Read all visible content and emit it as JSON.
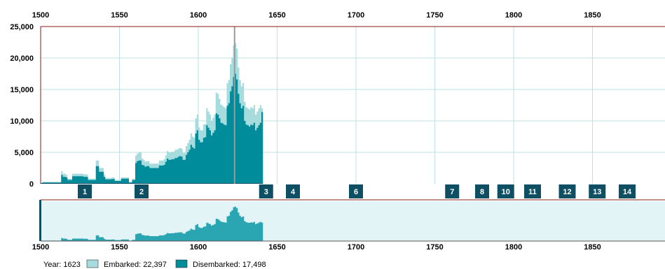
{
  "chart_data": {
    "type": "area",
    "x_ticks": [
      1500,
      1550,
      1600,
      1650,
      1700,
      1750,
      1800,
      1850
    ],
    "y_ticks": [
      0,
      5000,
      10000,
      15000,
      20000,
      25000
    ],
    "y_tick_labels": [
      "0",
      "5,000",
      "10,000",
      "15,000",
      "20,000",
      "25,000"
    ],
    "x_tick_labels": [
      "1500",
      "1550",
      "1600",
      "1650",
      "1700",
      "1750",
      "1800",
      "1850"
    ],
    "xlim": [
      1500,
      1895
    ],
    "ylim": [
      0,
      25000
    ],
    "grid": true,
    "selected_year": 1623,
    "series": [
      {
        "name": "Embarked",
        "color": "#a6dcde",
        "x": [
          1501,
          1513,
          1514,
          1516,
          1517,
          1520,
          1525,
          1527,
          1530,
          1535,
          1536,
          1537,
          1540,
          1541,
          1542,
          1545,
          1546,
          1547,
          1550,
          1551,
          1555,
          1556,
          1558,
          1560,
          1561,
          1562,
          1564,
          1565,
          1566,
          1567,
          1569,
          1571,
          1575,
          1578,
          1579,
          1580,
          1581,
          1583,
          1585,
          1587,
          1588,
          1589,
          1590,
          1592,
          1593,
          1594,
          1595,
          1596,
          1597,
          1598,
          1599,
          1600,
          1601,
          1603,
          1604,
          1605,
          1606,
          1607,
          1608,
          1609,
          1610,
          1611,
          1612,
          1613,
          1614,
          1615,
          1616,
          1617,
          1618,
          1619,
          1620,
          1621,
          1622,
          1623,
          1624,
          1625,
          1626,
          1627,
          1628,
          1629,
          1630,
          1631,
          1632,
          1633,
          1634,
          1635,
          1636,
          1637,
          1638,
          1639,
          1640
        ],
        "values": [
          300,
          2000,
          1600,
          1400,
          800,
          1600,
          1600,
          1500,
          800,
          3700,
          3700,
          2500,
          1500,
          900,
          900,
          1000,
          1000,
          600,
          600,
          1000,
          1000,
          300,
          800,
          4500,
          4800,
          5000,
          4000,
          3800,
          3500,
          3600,
          3200,
          3200,
          3700,
          3900,
          4500,
          5200,
          5000,
          5100,
          5400,
          5600,
          5700,
          5600,
          4900,
          6000,
          6500,
          7000,
          8000,
          7500,
          7300,
          10400,
          11000,
          9000,
          8500,
          9400,
          9500,
          12000,
          11500,
          11000,
          10000,
          10500,
          11000,
          14500,
          14300,
          13500,
          12600,
          12400,
          12200,
          12000,
          16000,
          16500,
          19000,
          20000,
          22000,
          22397,
          21500,
          18500,
          16500,
          15500,
          16000,
          13000,
          12200,
          12000,
          11800,
          12200,
          12000,
          12500,
          11000,
          11500,
          12000,
          12500,
          12000
        ]
      },
      {
        "name": "Disembarked",
        "color": "#008c9b",
        "x": [
          1501,
          1513,
          1514,
          1516,
          1517,
          1520,
          1525,
          1527,
          1530,
          1535,
          1536,
          1537,
          1540,
          1541,
          1542,
          1545,
          1546,
          1547,
          1550,
          1551,
          1555,
          1556,
          1558,
          1560,
          1561,
          1562,
          1564,
          1565,
          1566,
          1567,
          1569,
          1571,
          1575,
          1578,
          1579,
          1580,
          1581,
          1583,
          1585,
          1587,
          1588,
          1589,
          1590,
          1592,
          1593,
          1594,
          1595,
          1596,
          1597,
          1598,
          1599,
          1600,
          1601,
          1603,
          1604,
          1605,
          1606,
          1607,
          1608,
          1609,
          1610,
          1611,
          1612,
          1613,
          1614,
          1615,
          1616,
          1617,
          1618,
          1619,
          1620,
          1621,
          1622,
          1623,
          1624,
          1625,
          1626,
          1627,
          1628,
          1629,
          1630,
          1631,
          1632,
          1633,
          1634,
          1635,
          1636,
          1637,
          1638,
          1639,
          1640
        ],
        "values": [
          200,
          1400,
          1100,
          1000,
          600,
          1200,
          1200,
          1100,
          600,
          2800,
          2800,
          1900,
          1100,
          700,
          700,
          750,
          750,
          450,
          450,
          800,
          800,
          200,
          600,
          3300,
          3600,
          3700,
          3000,
          2900,
          2700,
          2800,
          2500,
          2500,
          2900,
          3000,
          3500,
          4000,
          3800,
          3900,
          4100,
          4300,
          4400,
          4300,
          3800,
          4600,
          5000,
          5400,
          6200,
          5800,
          5600,
          8000,
          8500,
          7000,
          6600,
          7300,
          7400,
          9300,
          8900,
          8500,
          7700,
          8100,
          8500,
          11200,
          11000,
          10400,
          9700,
          9600,
          9400,
          9300,
          12400,
          12800,
          14700,
          15500,
          17000,
          17498,
          16600,
          14300,
          12800,
          12000,
          12400,
          10000,
          9400,
          9300,
          9100,
          9400,
          9300,
          9700,
          8500,
          8900,
          9300,
          9700,
          11400
        ]
      }
    ]
  },
  "markers": [
    {
      "label": "1",
      "year": 1528
    },
    {
      "label": "2",
      "year": 1564
    },
    {
      "label": "3",
      "year": 1643
    },
    {
      "label": "4",
      "year": 1660
    },
    {
      "label": "6",
      "year": 1700
    },
    {
      "label": "7",
      "year": 1761
    },
    {
      "label": "8",
      "year": 1780
    },
    {
      "label": "10",
      "year": 1795
    },
    {
      "label": "11",
      "year": 1812
    },
    {
      "label": "12",
      "year": 1834
    },
    {
      "label": "13",
      "year": 1853
    },
    {
      "label": "14",
      "year": 1872
    }
  ],
  "overview": {
    "x_tick_labels": [
      "1500",
      "1550",
      "1600",
      "1650",
      "1700",
      "1750",
      "1800",
      "1850"
    ],
    "background": "#e2f4f5",
    "area_color": "#2aa5b2"
  },
  "legend": {
    "year_text": "Year: 1623",
    "embarked_text": "Embarked: 22,397",
    "disembarked_text": "Disembarked: 17,498",
    "embarked_color": "#a6dcde",
    "disembarked_color": "#008c9b"
  },
  "colors": {
    "grid": "#bfe0e3",
    "frame": "#8b1a1a",
    "marker_bg": "#0f4f63",
    "selection_line": "#9a9a9a",
    "overview_handle": "#0f4f63"
  }
}
